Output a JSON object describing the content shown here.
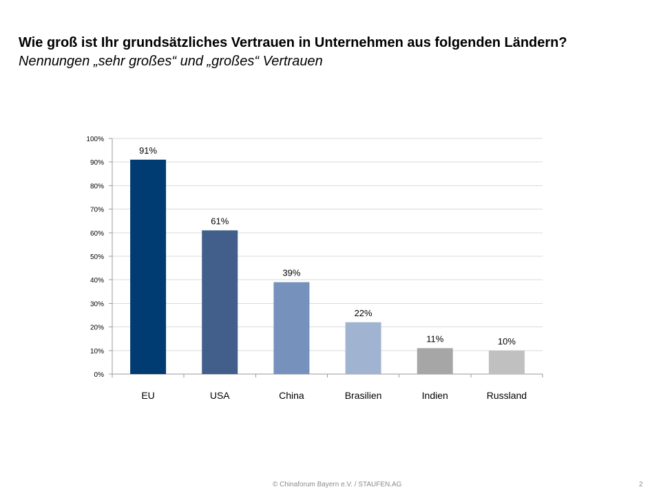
{
  "slide": {
    "title": "Wie groß ist Ihr grundsätzliches Vertrauen in Unternehmen aus folgenden Ländern?",
    "subtitle": "Nennungen „sehr großes“ und „großes“ Vertrauen",
    "footer": "© Chinaforum Bayern e.V. / STAUFEN.AG",
    "page_number": "2"
  },
  "chart_data": {
    "type": "bar",
    "categories": [
      "EU",
      "USA",
      "China",
      "Brasilien",
      "Indien",
      "Russland"
    ],
    "values": [
      91,
      61,
      39,
      22,
      11,
      10
    ],
    "value_labels": [
      "91%",
      "61%",
      "39%",
      "22%",
      "11%",
      "10%"
    ],
    "colors": [
      "#003c71",
      "#415f8a",
      "#7591bc",
      "#a0b4d1",
      "#a6a6a6",
      "#c0c0c0"
    ],
    "ylim": [
      0,
      100
    ],
    "yticks": [
      "0%",
      "10%",
      "20%",
      "30%",
      "40%",
      "50%",
      "60%",
      "70%",
      "80%",
      "90%",
      "100%"
    ],
    "grid": true,
    "xlabel": "",
    "ylabel": ""
  }
}
